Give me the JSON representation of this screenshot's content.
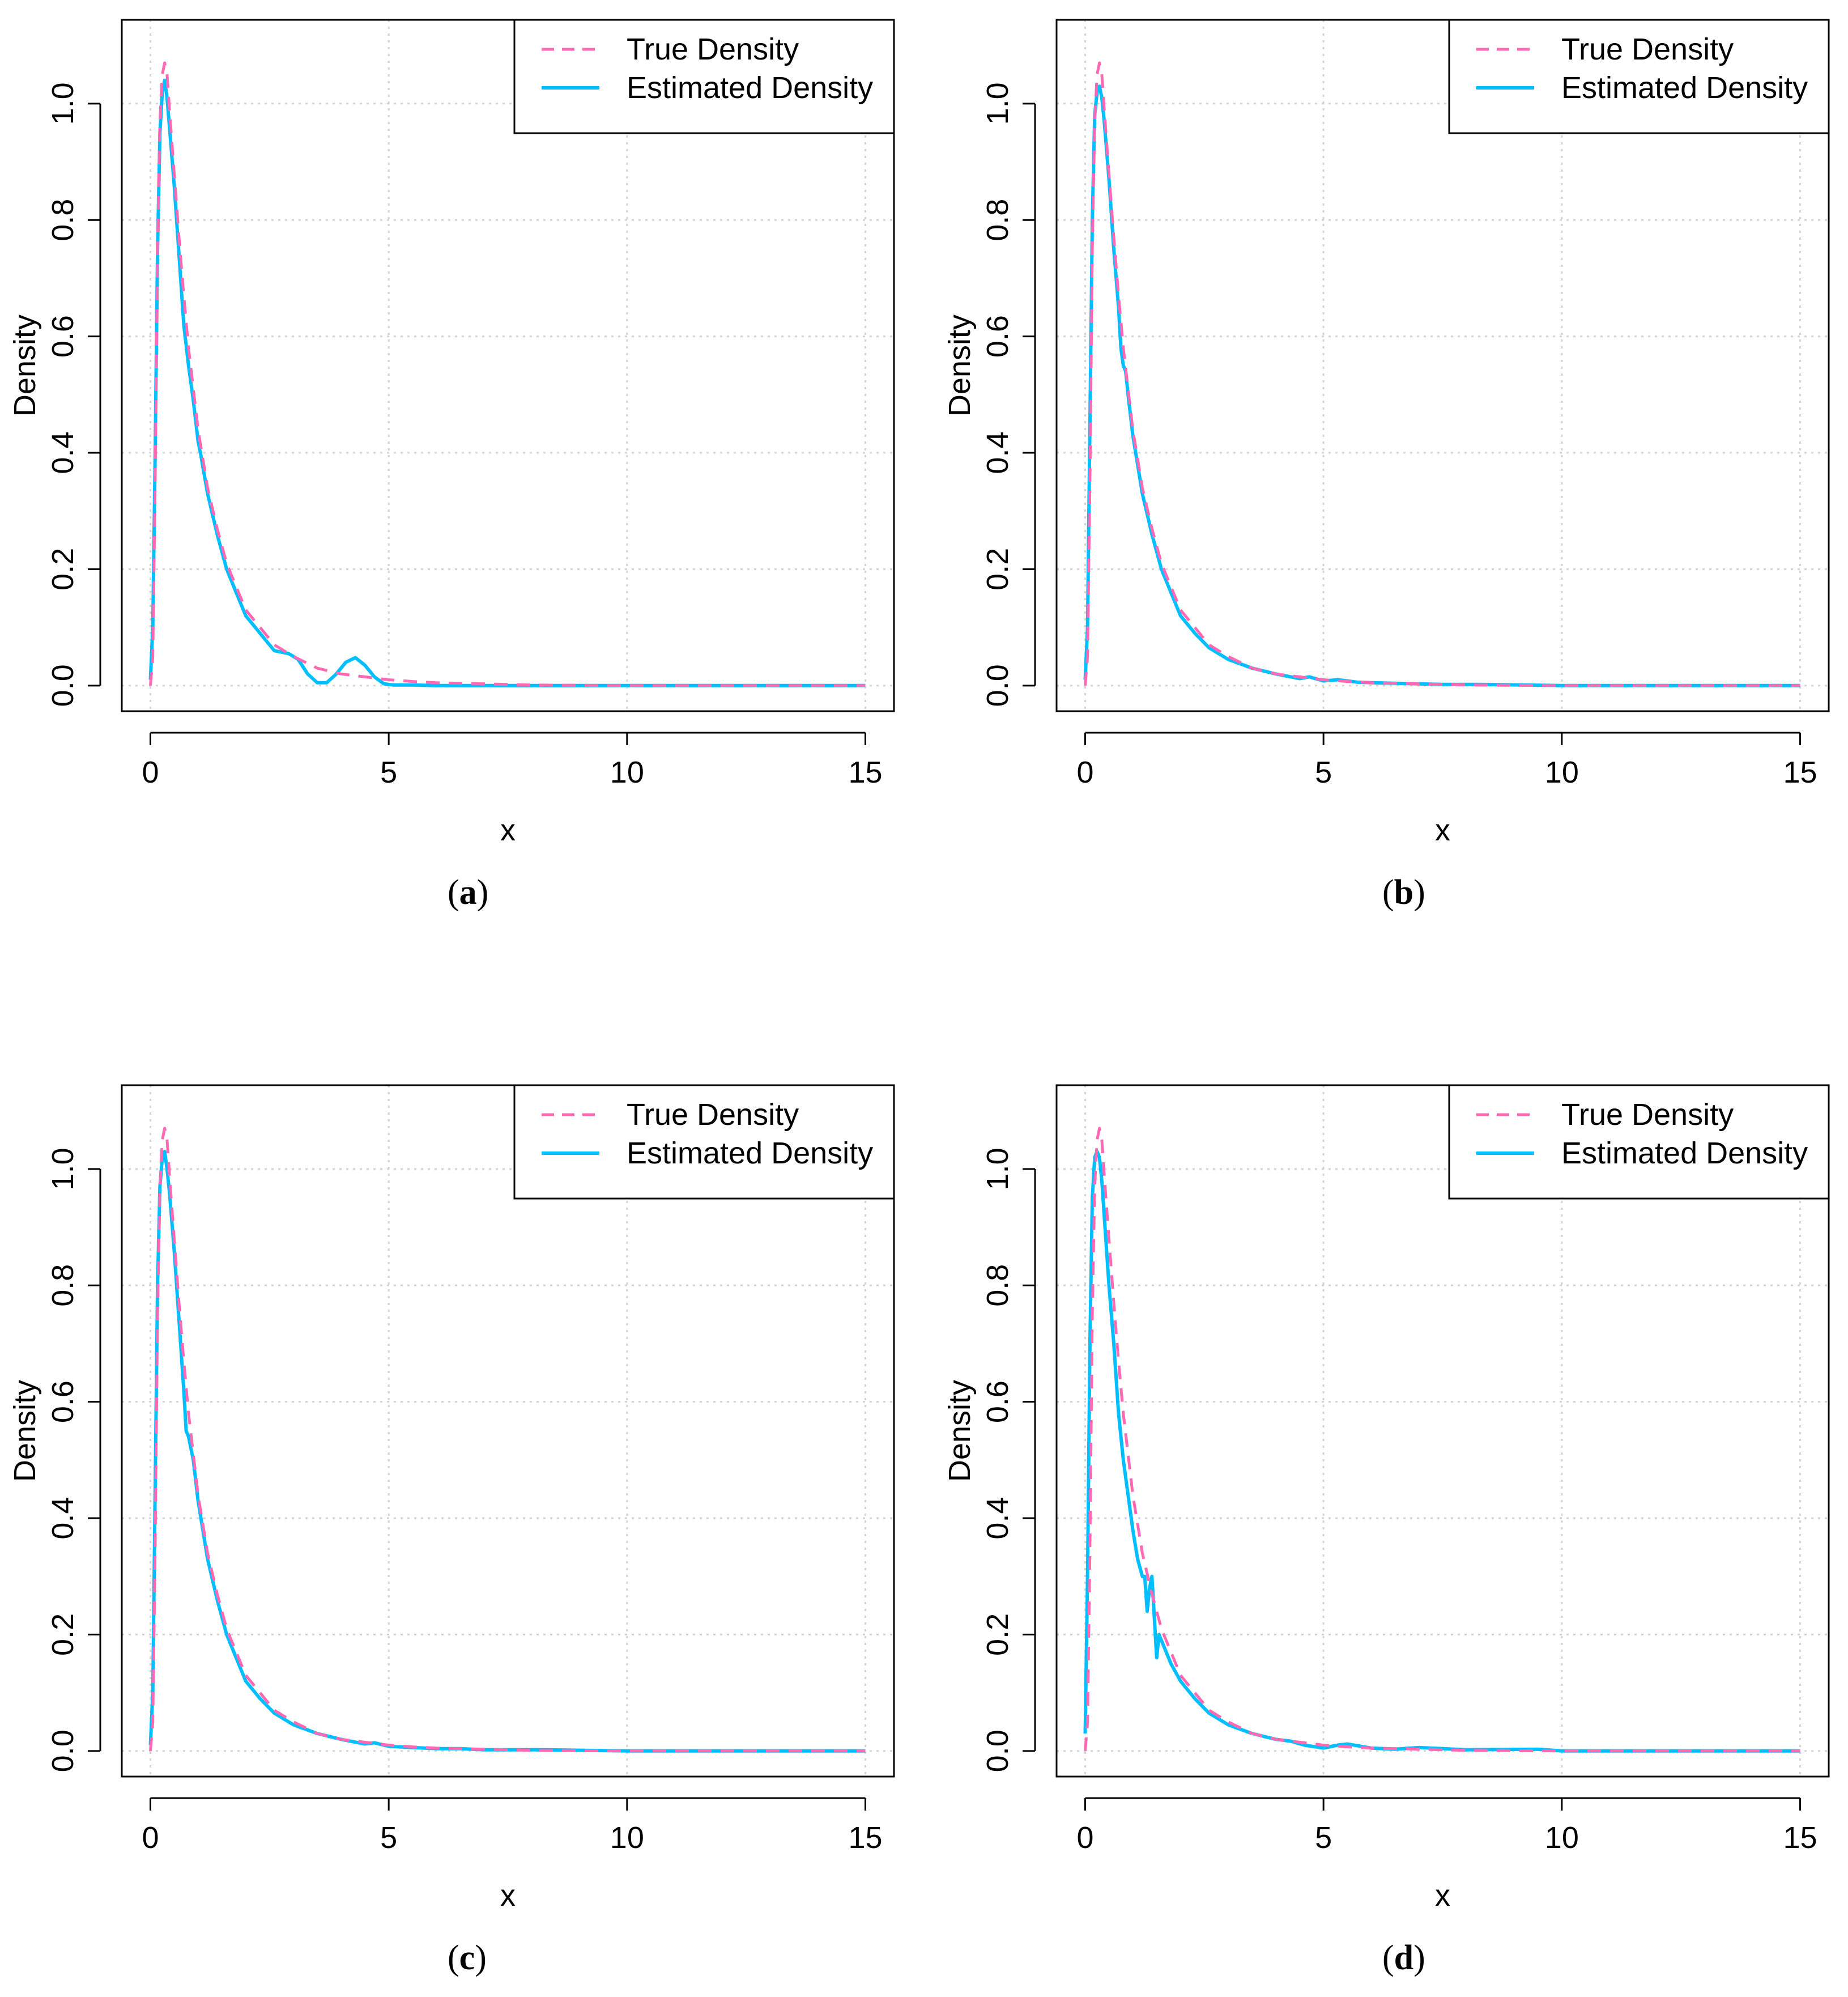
{
  "figure": {
    "captions": [
      "a",
      "b",
      "c",
      "d"
    ]
  },
  "colors": {
    "true_density": "#ff69b4",
    "estimated_density": "#00bfff",
    "grid": "#d3d3d3",
    "axis": "#000000"
  },
  "chart_data": [
    {
      "id": "a",
      "type": "line",
      "xlabel": "x",
      "ylabel": "Density",
      "xlim": [
        0,
        15
      ],
      "ylim": [
        0,
        1.1
      ],
      "xticks": [
        "0",
        "5",
        "10",
        "15"
      ],
      "yticks": [
        "0.0",
        "0.2",
        "0.4",
        "0.6",
        "0.8",
        "1.0"
      ],
      "grid": true,
      "legend_position": "top-right",
      "series": [
        {
          "name": "True Density",
          "style": "dashed",
          "x": [
            0,
            0.05,
            0.1,
            0.15,
            0.2,
            0.25,
            0.3,
            0.35,
            0.4,
            0.5,
            0.6,
            0.7,
            0.8,
            0.9,
            1.0,
            1.2,
            1.4,
            1.6,
            1.8,
            2.0,
            2.3,
            2.6,
            3.0,
            3.5,
            4.0,
            4.5,
            5.0,
            5.5,
            6.0,
            7.0,
            8.0,
            10.0,
            12.0,
            15.0
          ],
          "y": [
            0,
            0.05,
            0.35,
            0.75,
            0.97,
            1.05,
            1.07,
            1.05,
            0.99,
            0.88,
            0.77,
            0.67,
            0.58,
            0.51,
            0.44,
            0.34,
            0.27,
            0.21,
            0.17,
            0.13,
            0.1,
            0.07,
            0.05,
            0.03,
            0.02,
            0.015,
            0.01,
            0.007,
            0.005,
            0.003,
            0.001,
            0,
            0,
            0
          ]
        },
        {
          "name": "Estimated Density",
          "style": "solid",
          "x": [
            0,
            0.05,
            0.1,
            0.15,
            0.2,
            0.25,
            0.3,
            0.35,
            0.4,
            0.5,
            0.6,
            0.7,
            0.8,
            0.9,
            1.0,
            1.05,
            1.2,
            1.4,
            1.6,
            1.8,
            2.0,
            2.3,
            2.6,
            2.9,
            3.1,
            3.3,
            3.5,
            3.7,
            3.9,
            4.1,
            4.3,
            4.5,
            4.7,
            4.9,
            5.1,
            5.5,
            6.0,
            7.0,
            10.0,
            15.0
          ],
          "y": [
            0.01,
            0.1,
            0.4,
            0.75,
            0.95,
            1.02,
            1.04,
            1.01,
            0.96,
            0.86,
            0.74,
            0.62,
            0.55,
            0.49,
            0.42,
            0.4,
            0.33,
            0.26,
            0.2,
            0.16,
            0.12,
            0.09,
            0.06,
            0.055,
            0.045,
            0.02,
            0.005,
            0.005,
            0.02,
            0.04,
            0.048,
            0.035,
            0.015,
            0.003,
            0.001,
            0.001,
            0,
            0,
            0,
            0
          ]
        }
      ]
    },
    {
      "id": "b",
      "type": "line",
      "xlabel": "x",
      "ylabel": "Density",
      "xlim": [
        0,
        15
      ],
      "ylim": [
        0,
        1.1
      ],
      "xticks": [
        "0",
        "5",
        "10",
        "15"
      ],
      "yticks": [
        "0.0",
        "0.2",
        "0.4",
        "0.6",
        "0.8",
        "1.0"
      ],
      "grid": true,
      "legend_position": "top-right",
      "series": [
        {
          "name": "True Density",
          "style": "dashed",
          "x": [
            0,
            0.05,
            0.1,
            0.15,
            0.2,
            0.25,
            0.3,
            0.35,
            0.4,
            0.5,
            0.6,
            0.7,
            0.8,
            0.9,
            1.0,
            1.2,
            1.4,
            1.6,
            1.8,
            2.0,
            2.3,
            2.6,
            3.0,
            3.5,
            4.0,
            4.5,
            5.0,
            5.5,
            6.0,
            7.0,
            8.0,
            10.0,
            12.0,
            15.0
          ],
          "y": [
            0,
            0.05,
            0.35,
            0.75,
            0.97,
            1.05,
            1.07,
            1.05,
            0.99,
            0.88,
            0.77,
            0.67,
            0.58,
            0.51,
            0.44,
            0.34,
            0.27,
            0.21,
            0.17,
            0.13,
            0.1,
            0.07,
            0.05,
            0.03,
            0.02,
            0.015,
            0.01,
            0.007,
            0.005,
            0.003,
            0.001,
            0,
            0,
            0
          ]
        },
        {
          "name": "Estimated Density",
          "style": "solid",
          "x": [
            0,
            0.05,
            0.1,
            0.15,
            0.2,
            0.25,
            0.3,
            0.35,
            0.4,
            0.5,
            0.6,
            0.7,
            0.75,
            0.8,
            0.85,
            0.9,
            1.0,
            1.2,
            1.4,
            1.6,
            1.8,
            2.0,
            2.3,
            2.6,
            3.0,
            3.5,
            4.0,
            4.5,
            4.7,
            5.0,
            5.3,
            5.7,
            6.0,
            6.5,
            7.0,
            7.5,
            8.3,
            10.0,
            15.0
          ],
          "y": [
            0.01,
            0.1,
            0.45,
            0.8,
            0.98,
            1.02,
            1.03,
            1.01,
            0.97,
            0.87,
            0.75,
            0.65,
            0.58,
            0.55,
            0.54,
            0.5,
            0.43,
            0.33,
            0.26,
            0.2,
            0.16,
            0.12,
            0.09,
            0.065,
            0.045,
            0.03,
            0.02,
            0.012,
            0.015,
            0.008,
            0.01,
            0.006,
            0.005,
            0.004,
            0.003,
            0.002,
            0.002,
            0,
            0
          ]
        }
      ]
    },
    {
      "id": "c",
      "type": "line",
      "xlabel": "x",
      "ylabel": "Density",
      "xlim": [
        0,
        15
      ],
      "ylim": [
        0,
        1.1
      ],
      "xticks": [
        "0",
        "5",
        "10",
        "15"
      ],
      "yticks": [
        "0.0",
        "0.2",
        "0.4",
        "0.6",
        "0.8",
        "1.0"
      ],
      "grid": true,
      "legend_position": "top-right",
      "series": [
        {
          "name": "True Density",
          "style": "dashed",
          "x": [
            0,
            0.05,
            0.1,
            0.15,
            0.2,
            0.25,
            0.3,
            0.35,
            0.4,
            0.5,
            0.6,
            0.7,
            0.8,
            0.9,
            1.0,
            1.2,
            1.4,
            1.6,
            1.8,
            2.0,
            2.3,
            2.6,
            3.0,
            3.5,
            4.0,
            4.5,
            5.0,
            5.5,
            6.0,
            7.0,
            8.0,
            10.0,
            12.0,
            15.0
          ],
          "y": [
            0,
            0.05,
            0.35,
            0.75,
            0.97,
            1.05,
            1.07,
            1.05,
            0.99,
            0.88,
            0.77,
            0.67,
            0.58,
            0.51,
            0.44,
            0.34,
            0.27,
            0.21,
            0.17,
            0.13,
            0.1,
            0.07,
            0.05,
            0.03,
            0.02,
            0.015,
            0.01,
            0.007,
            0.005,
            0.003,
            0.001,
            0,
            0,
            0
          ]
        },
        {
          "name": "Estimated Density",
          "style": "solid",
          "x": [
            0,
            0.05,
            0.1,
            0.15,
            0.2,
            0.25,
            0.3,
            0.35,
            0.4,
            0.5,
            0.6,
            0.7,
            0.75,
            0.8,
            0.9,
            1.0,
            1.2,
            1.4,
            1.6,
            1.8,
            2.0,
            2.3,
            2.6,
            3.0,
            3.5,
            4.0,
            4.5,
            4.7,
            5.0,
            5.5,
            6.0,
            6.5,
            7.0,
            7.5,
            8.3,
            10.0,
            15.0
          ],
          "y": [
            0.01,
            0.1,
            0.45,
            0.8,
            0.97,
            1.02,
            1.03,
            1.0,
            0.96,
            0.86,
            0.74,
            0.62,
            0.55,
            0.54,
            0.5,
            0.43,
            0.33,
            0.26,
            0.2,
            0.16,
            0.12,
            0.09,
            0.065,
            0.045,
            0.03,
            0.02,
            0.012,
            0.014,
            0.008,
            0.006,
            0.004,
            0.004,
            0.002,
            0.002,
            0.002,
            0,
            0
          ]
        }
      ]
    },
    {
      "id": "d",
      "type": "line",
      "xlabel": "x",
      "ylabel": "Density",
      "xlim": [
        0,
        15
      ],
      "ylim": [
        0,
        1.1
      ],
      "xticks": [
        "0",
        "5",
        "10",
        "15"
      ],
      "yticks": [
        "0.0",
        "0.2",
        "0.4",
        "0.6",
        "0.8",
        "1.0"
      ],
      "grid": true,
      "legend_position": "top-right",
      "series": [
        {
          "name": "True Density",
          "style": "dashed",
          "x": [
            0,
            0.05,
            0.1,
            0.15,
            0.2,
            0.25,
            0.3,
            0.35,
            0.4,
            0.5,
            0.6,
            0.7,
            0.8,
            0.9,
            1.0,
            1.2,
            1.4,
            1.6,
            1.8,
            2.0,
            2.3,
            2.6,
            3.0,
            3.5,
            4.0,
            4.5,
            5.0,
            5.5,
            6.0,
            7.0,
            8.0,
            10.0,
            12.0,
            15.0
          ],
          "y": [
            0,
            0.05,
            0.35,
            0.75,
            0.97,
            1.05,
            1.07,
            1.05,
            0.99,
            0.88,
            0.77,
            0.67,
            0.58,
            0.51,
            0.44,
            0.34,
            0.27,
            0.21,
            0.17,
            0.13,
            0.1,
            0.07,
            0.05,
            0.03,
            0.02,
            0.015,
            0.01,
            0.007,
            0.005,
            0.003,
            0.001,
            0,
            0,
            0
          ]
        },
        {
          "name": "Estimated Density",
          "style": "solid",
          "x": [
            0,
            0.05,
            0.1,
            0.15,
            0.2,
            0.25,
            0.3,
            0.35,
            0.4,
            0.5,
            0.6,
            0.7,
            0.8,
            0.9,
            1.0,
            1.1,
            1.2,
            1.25,
            1.3,
            1.35,
            1.4,
            1.45,
            1.5,
            1.55,
            1.6,
            1.7,
            1.8,
            2.0,
            2.3,
            2.6,
            3.0,
            3.5,
            4.0,
            4.3,
            4.6,
            5.0,
            5.3,
            5.5,
            6.0,
            6.5,
            7.0,
            8.0,
            9.5,
            10.0,
            15.0
          ],
          "y": [
            0.03,
            0.3,
            0.7,
            0.95,
            1.02,
            1.03,
            1.02,
            0.98,
            0.92,
            0.8,
            0.7,
            0.58,
            0.5,
            0.44,
            0.38,
            0.33,
            0.3,
            0.3,
            0.24,
            0.28,
            0.3,
            0.23,
            0.16,
            0.2,
            0.19,
            0.17,
            0.15,
            0.12,
            0.09,
            0.065,
            0.045,
            0.03,
            0.02,
            0.017,
            0.01,
            0.005,
            0.01,
            0.012,
            0.005,
            0.003,
            0.006,
            0.002,
            0.003,
            0,
            0
          ]
        }
      ]
    }
  ]
}
